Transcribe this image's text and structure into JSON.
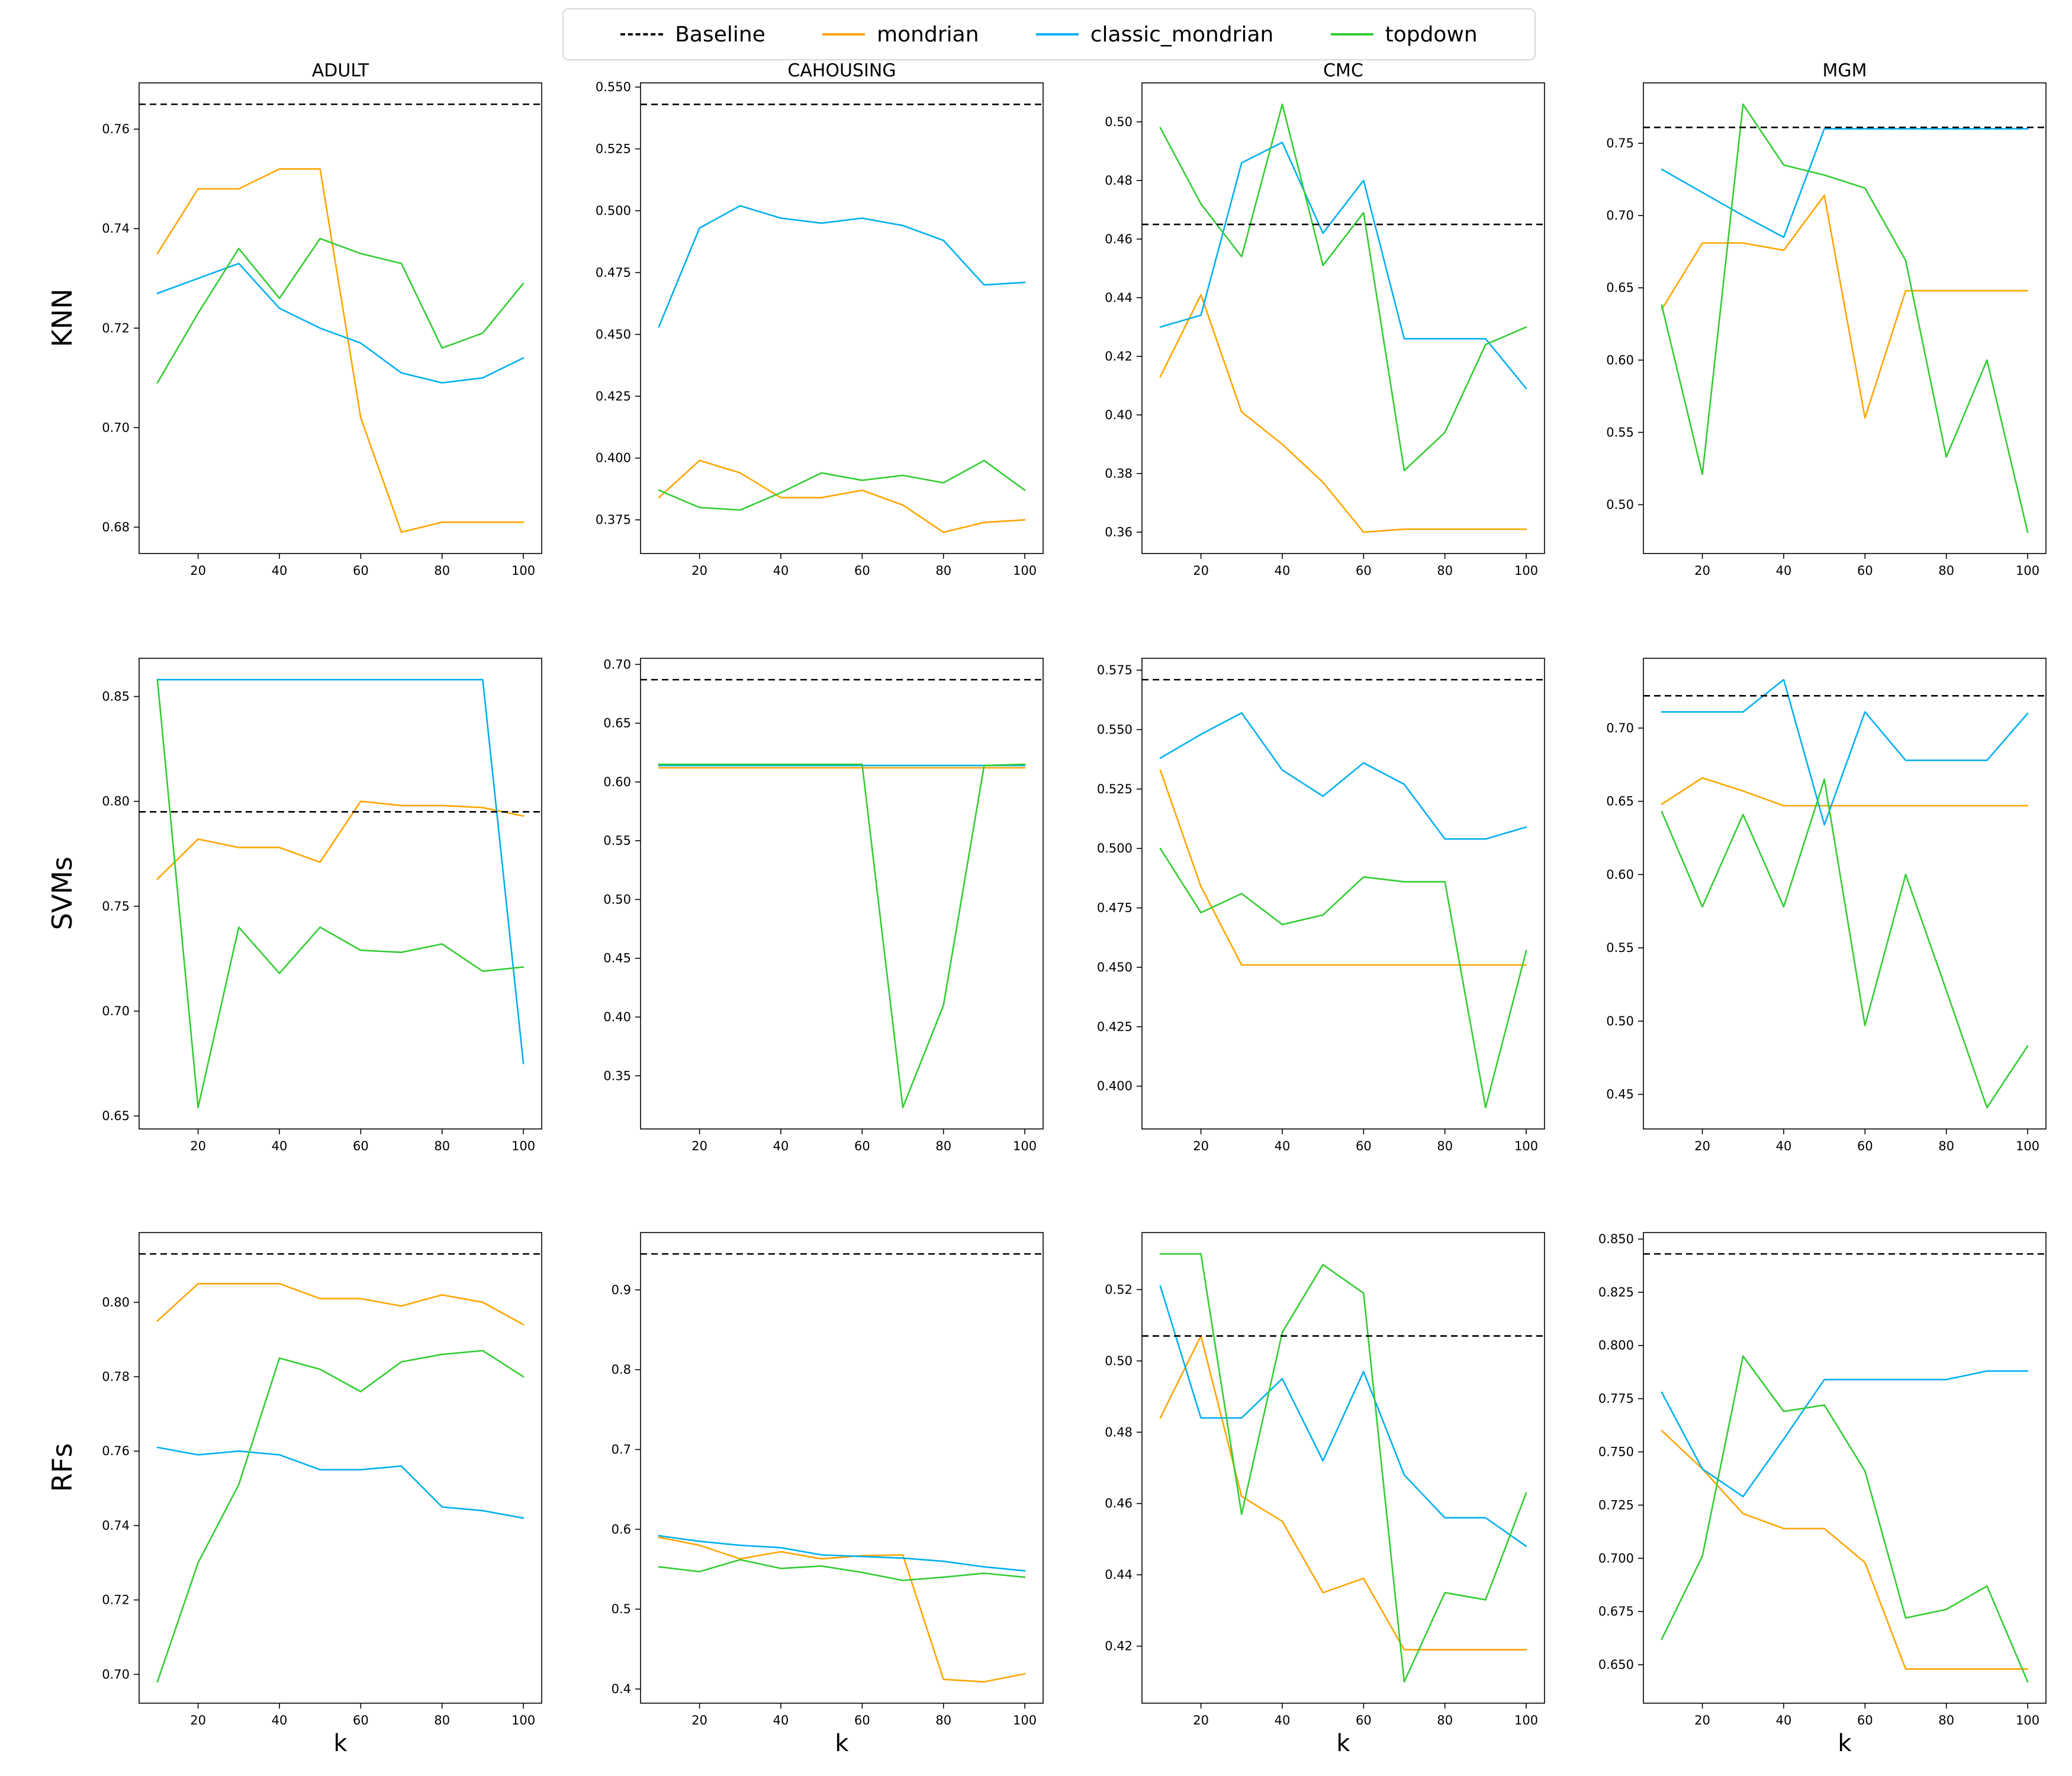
{
  "legend": {
    "items": [
      {
        "label": "Baseline",
        "color": "#000000",
        "style": "dashed"
      },
      {
        "label": "mondrian",
        "color": "#FFA500",
        "style": "solid"
      },
      {
        "label": "classic_mondrian",
        "color": "#00B0F0",
        "style": "solid"
      },
      {
        "label": "topdown",
        "color": "#32CD32",
        "style": "solid"
      }
    ]
  },
  "rows": [
    {
      "label": "KNN"
    },
    {
      "label": "SVMs"
    },
    {
      "label": "RFs"
    }
  ],
  "columns": [
    "ADULT",
    "CAHOUSING",
    "CMC",
    "MGM"
  ],
  "xlabel": "k",
  "chart_data": [
    {
      "type": "line",
      "row": "KNN",
      "col": "ADULT",
      "title": "ADULT",
      "x": [
        10,
        20,
        30,
        40,
        50,
        60,
        70,
        80,
        90,
        100
      ],
      "xticks": [
        20,
        40,
        60,
        80,
        100
      ],
      "ylim": [
        0.6747,
        0.7693
      ],
      "yticks": [
        0.68,
        0.7,
        0.72,
        0.74,
        0.76
      ],
      "ytick_decimals": 2,
      "baseline": 0.765,
      "series": [
        {
          "name": "mondrian",
          "values": [
            0.735,
            0.748,
            0.748,
            0.752,
            0.752,
            0.702,
            0.679,
            0.681,
            0.681,
            0.681
          ]
        },
        {
          "name": "classic_mondrian",
          "values": [
            0.727,
            0.73,
            0.733,
            0.724,
            0.72,
            0.717,
            0.711,
            0.709,
            0.71,
            0.714
          ]
        },
        {
          "name": "topdown",
          "values": [
            0.709,
            0.723,
            0.736,
            0.726,
            0.738,
            0.735,
            0.733,
            0.716,
            0.719,
            0.729
          ]
        }
      ]
    },
    {
      "type": "line",
      "row": "KNN",
      "col": "CAHOUSING",
      "title": "CAHOUSING",
      "x": [
        10,
        20,
        30,
        40,
        50,
        60,
        70,
        80,
        90,
        100
      ],
      "xticks": [
        20,
        40,
        60,
        80,
        100
      ],
      "ylim": [
        0.3614,
        0.5517
      ],
      "yticks": [
        0.375,
        0.4,
        0.425,
        0.45,
        0.475,
        0.5,
        0.525,
        0.55
      ],
      "ytick_decimals": 3,
      "baseline": 0.543,
      "series": [
        {
          "name": "mondrian",
          "values": [
            0.384,
            0.399,
            0.394,
            0.384,
            0.384,
            0.387,
            0.381,
            0.37,
            0.374,
            0.375
          ]
        },
        {
          "name": "classic_mondrian",
          "values": [
            0.453,
            0.493,
            0.502,
            0.497,
            0.495,
            0.497,
            0.494,
            0.488,
            0.47,
            0.471
          ]
        },
        {
          "name": "topdown",
          "values": [
            0.387,
            0.38,
            0.379,
            0.386,
            0.394,
            0.391,
            0.393,
            0.39,
            0.399,
            0.387
          ]
        }
      ]
    },
    {
      "type": "line",
      "row": "KNN",
      "col": "CMC",
      "title": "CMC",
      "x": [
        10,
        20,
        30,
        40,
        50,
        60,
        70,
        80,
        90,
        100
      ],
      "xticks": [
        20,
        40,
        60,
        80,
        100
      ],
      "ylim": [
        0.3527,
        0.5133
      ],
      "yticks": [
        0.36,
        0.38,
        0.4,
        0.42,
        0.44,
        0.46,
        0.48,
        0.5
      ],
      "ytick_decimals": 2,
      "baseline": 0.465,
      "series": [
        {
          "name": "mondrian",
          "values": [
            0.413,
            0.441,
            0.401,
            0.39,
            0.377,
            0.36,
            0.361,
            0.361,
            0.361,
            0.361
          ]
        },
        {
          "name": "classic_mondrian",
          "values": [
            0.43,
            0.434,
            0.486,
            0.493,
            0.462,
            0.48,
            0.426,
            0.426,
            0.426,
            0.409
          ]
        },
        {
          "name": "topdown",
          "values": [
            0.498,
            0.472,
            0.454,
            0.506,
            0.451,
            0.469,
            0.381,
            0.394,
            0.424,
            0.43
          ]
        }
      ]
    },
    {
      "type": "line",
      "row": "KNN",
      "col": "MGM",
      "title": "MGM",
      "x": [
        10,
        20,
        30,
        40,
        50,
        60,
        70,
        80,
        90,
        100
      ],
      "xticks": [
        20,
        40,
        60,
        80,
        100
      ],
      "ylim": [
        0.4662,
        0.7918
      ],
      "yticks": [
        0.5,
        0.55,
        0.6,
        0.65,
        0.7,
        0.75
      ],
      "ytick_decimals": 2,
      "baseline": 0.761,
      "series": [
        {
          "name": "mondrian",
          "values": [
            0.635,
            0.681,
            0.681,
            0.676,
            0.714,
            0.56,
            0.648,
            0.648,
            0.648,
            0.648
          ]
        },
        {
          "name": "classic_mondrian",
          "values": [
            0.732,
            0.716,
            0.7,
            0.685,
            0.76,
            0.76,
            0.76,
            0.76,
            0.76,
            0.76
          ]
        },
        {
          "name": "topdown",
          "values": [
            0.638,
            0.521,
            0.777,
            0.735,
            0.728,
            0.719,
            0.669,
            0.533,
            0.6,
            0.481
          ]
        }
      ]
    },
    {
      "type": "line",
      "row": "SVMs",
      "col": "ADULT",
      "title": "ADULT",
      "x": [
        10,
        20,
        30,
        40,
        50,
        60,
        70,
        80,
        90,
        100
      ],
      "xticks": [
        20,
        40,
        60,
        80,
        100
      ],
      "ylim": [
        0.6438,
        0.8682
      ],
      "yticks": [
        0.65,
        0.7,
        0.75,
        0.8,
        0.85
      ],
      "ytick_decimals": 2,
      "baseline": 0.795,
      "series": [
        {
          "name": "mondrian",
          "values": [
            0.763,
            0.782,
            0.778,
            0.778,
            0.771,
            0.8,
            0.798,
            0.798,
            0.797,
            0.793
          ]
        },
        {
          "name": "classic_mondrian",
          "values": [
            0.858,
            0.858,
            0.858,
            0.858,
            0.858,
            0.858,
            0.858,
            0.858,
            0.858,
            0.675
          ]
        },
        {
          "name": "topdown",
          "values": [
            0.858,
            0.654,
            0.74,
            0.718,
            0.74,
            0.729,
            0.728,
            0.732,
            0.719,
            0.721
          ]
        }
      ]
    },
    {
      "type": "line",
      "row": "SVMs",
      "col": "CAHOUSING",
      "title": "CAHOUSING",
      "x": [
        10,
        20,
        30,
        40,
        50,
        60,
        70,
        80,
        90,
        100
      ],
      "xticks": [
        20,
        40,
        60,
        80,
        100
      ],
      "ylim": [
        0.3048,
        0.7052
      ],
      "yticks": [
        0.35,
        0.4,
        0.45,
        0.5,
        0.55,
        0.6,
        0.65,
        0.7
      ],
      "ytick_decimals": 2,
      "baseline": 0.687,
      "series": [
        {
          "name": "mondrian",
          "values": [
            0.612,
            0.612,
            0.612,
            0.612,
            0.612,
            0.612,
            0.612,
            0.612,
            0.612,
            0.612
          ]
        },
        {
          "name": "classic_mondrian",
          "values": [
            0.614,
            0.614,
            0.614,
            0.614,
            0.614,
            0.614,
            0.614,
            0.614,
            0.614,
            0.614
          ]
        },
        {
          "name": "topdown",
          "values": [
            0.615,
            0.615,
            0.615,
            0.615,
            0.615,
            0.615,
            0.323,
            0.41,
            0.614,
            0.615
          ]
        }
      ]
    },
    {
      "type": "line",
      "row": "SVMs",
      "col": "CMC",
      "title": "CMC",
      "x": [
        10,
        20,
        30,
        40,
        50,
        60,
        70,
        80,
        90,
        100
      ],
      "xticks": [
        20,
        40,
        60,
        80,
        100
      ],
      "ylim": [
        0.382,
        0.58
      ],
      "yticks": [
        0.4,
        0.425,
        0.45,
        0.475,
        0.5,
        0.525,
        0.55,
        0.575
      ],
      "ytick_decimals": 3,
      "baseline": 0.571,
      "series": [
        {
          "name": "mondrian",
          "values": [
            0.533,
            0.484,
            0.451,
            0.451,
            0.451,
            0.451,
            0.451,
            0.451,
            0.451,
            0.451
          ]
        },
        {
          "name": "classic_mondrian",
          "values": [
            0.538,
            0.548,
            0.557,
            0.533,
            0.522,
            0.536,
            0.527,
            0.504,
            0.504,
            0.509
          ]
        },
        {
          "name": "topdown",
          "values": [
            0.5,
            0.473,
            0.481,
            0.468,
            0.472,
            0.488,
            0.486,
            0.486,
            0.391,
            0.457
          ]
        }
      ]
    },
    {
      "type": "line",
      "row": "SVMs",
      "col": "MGM",
      "title": "MGM",
      "x": [
        10,
        20,
        30,
        40,
        50,
        60,
        70,
        80,
        90,
        100
      ],
      "xticks": [
        20,
        40,
        60,
        80,
        100
      ],
      "ylim": [
        0.4264,
        0.7476
      ],
      "yticks": [
        0.45,
        0.5,
        0.55,
        0.6,
        0.65,
        0.7
      ],
      "ytick_decimals": 2,
      "baseline": 0.722,
      "series": [
        {
          "name": "mondrian",
          "values": [
            0.648,
            0.666,
            0.657,
            0.647,
            0.647,
            0.647,
            0.647,
            0.647,
            0.647,
            0.647
          ]
        },
        {
          "name": "classic_mondrian",
          "values": [
            0.711,
            0.711,
            0.711,
            0.733,
            0.634,
            0.711,
            0.678,
            0.678,
            0.678,
            0.71
          ]
        },
        {
          "name": "topdown",
          "values": [
            0.643,
            0.578,
            0.641,
            0.578,
            0.665,
            0.497,
            0.6,
            0.521,
            0.441,
            0.483
          ]
        }
      ]
    },
    {
      "type": "line",
      "row": "RFs",
      "col": "ADULT",
      "title": "ADULT",
      "x": [
        10,
        20,
        30,
        40,
        50,
        60,
        70,
        80,
        90,
        100
      ],
      "xticks": [
        20,
        40,
        60,
        80,
        100
      ],
      "ylim": [
        0.69225,
        0.81875
      ],
      "yticks": [
        0.7,
        0.72,
        0.74,
        0.76,
        0.78,
        0.8
      ],
      "ytick_decimals": 2,
      "baseline": 0.813,
      "series": [
        {
          "name": "mondrian",
          "values": [
            0.795,
            0.805,
            0.805,
            0.805,
            0.801,
            0.801,
            0.799,
            0.802,
            0.8,
            0.794
          ]
        },
        {
          "name": "classic_mondrian",
          "values": [
            0.761,
            0.759,
            0.76,
            0.759,
            0.755,
            0.755,
            0.756,
            0.745,
            0.744,
            0.742
          ]
        },
        {
          "name": "topdown",
          "values": [
            0.698,
            0.73,
            0.751,
            0.785,
            0.782,
            0.776,
            0.784,
            0.786,
            0.787,
            0.78
          ]
        }
      ]
    },
    {
      "type": "line",
      "row": "RFs",
      "col": "CAHOUSING",
      "title": "CAHOUSING",
      "x": [
        10,
        20,
        30,
        40,
        50,
        60,
        70,
        80,
        90,
        100
      ],
      "xticks": [
        20,
        40,
        60,
        80,
        100
      ],
      "ylim": [
        0.3822,
        0.9718
      ],
      "yticks": [
        0.4,
        0.5,
        0.6,
        0.7,
        0.8,
        0.9
      ],
      "ytick_decimals": 1,
      "baseline": 0.945,
      "series": [
        {
          "name": "mondrian",
          "values": [
            0.59,
            0.58,
            0.563,
            0.572,
            0.563,
            0.567,
            0.568,
            0.412,
            0.409,
            0.419
          ]
        },
        {
          "name": "classic_mondrian",
          "values": [
            0.592,
            0.585,
            0.58,
            0.577,
            0.568,
            0.566,
            0.564,
            0.56,
            0.553,
            0.548
          ]
        },
        {
          "name": "topdown",
          "values": [
            0.553,
            0.547,
            0.562,
            0.551,
            0.554,
            0.546,
            0.536,
            0.54,
            0.545,
            0.54
          ]
        }
      ]
    },
    {
      "type": "line",
      "row": "RFs",
      "col": "CMC",
      "title": "CMC",
      "x": [
        10,
        20,
        30,
        40,
        50,
        60,
        70,
        80,
        90,
        100
      ],
      "xticks": [
        20,
        40,
        60,
        80,
        100
      ],
      "ylim": [
        0.404,
        0.536
      ],
      "yticks": [
        0.42,
        0.44,
        0.46,
        0.48,
        0.5,
        0.52
      ],
      "ytick_decimals": 2,
      "baseline": 0.507,
      "series": [
        {
          "name": "mondrian",
          "values": [
            0.484,
            0.507,
            0.462,
            0.455,
            0.435,
            0.439,
            0.419,
            0.419,
            0.419,
            0.419
          ]
        },
        {
          "name": "classic_mondrian",
          "values": [
            0.521,
            0.484,
            0.484,
            0.495,
            0.472,
            0.497,
            0.468,
            0.456,
            0.456,
            0.448
          ]
        },
        {
          "name": "topdown",
          "values": [
            0.53,
            0.53,
            0.457,
            0.508,
            0.527,
            0.519,
            0.41,
            0.435,
            0.433,
            0.463
          ]
        }
      ]
    },
    {
      "type": "line",
      "row": "RFs",
      "col": "MGM",
      "title": "MGM",
      "x": [
        10,
        20,
        30,
        40,
        50,
        60,
        70,
        80,
        90,
        100
      ],
      "xticks": [
        20,
        40,
        60,
        80,
        100
      ],
      "ylim": [
        0.63195,
        0.85305
      ],
      "yticks": [
        0.65,
        0.675,
        0.7,
        0.725,
        0.75,
        0.775,
        0.8,
        0.825,
        0.85
      ],
      "ytick_decimals": 3,
      "baseline": 0.843,
      "series": [
        {
          "name": "mondrian",
          "values": [
            0.76,
            0.742,
            0.721,
            0.714,
            0.714,
            0.698,
            0.648,
            0.648,
            0.648,
            0.648
          ]
        },
        {
          "name": "classic_mondrian",
          "values": [
            0.778,
            0.742,
            0.729,
            0.756,
            0.784,
            0.784,
            0.784,
            0.784,
            0.788,
            0.788
          ]
        },
        {
          "name": "topdown",
          "values": [
            0.662,
            0.701,
            0.795,
            0.769,
            0.772,
            0.741,
            0.672,
            0.676,
            0.687,
            0.642
          ]
        }
      ]
    }
  ]
}
